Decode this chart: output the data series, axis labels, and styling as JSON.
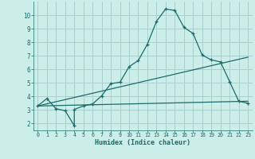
{
  "xlabel": "Humidex (Indice chaleur)",
  "bg_color": "#cceee8",
  "grid_color": "#aacfcf",
  "line_color": "#1a6b6b",
  "xlim": [
    -0.5,
    23.5
  ],
  "ylim": [
    1.5,
    11.0
  ],
  "xticks": [
    0,
    1,
    2,
    3,
    4,
    5,
    6,
    7,
    8,
    9,
    10,
    11,
    12,
    13,
    14,
    15,
    16,
    17,
    18,
    19,
    20,
    21,
    22,
    23
  ],
  "yticks": [
    2,
    3,
    4,
    5,
    6,
    7,
    8,
    9,
    10
  ],
  "series1_x": [
    0,
    1,
    2,
    3,
    4,
    4,
    5,
    6,
    7,
    8,
    9,
    10,
    11,
    12,
    13,
    14,
    15,
    16,
    17,
    18,
    19,
    20,
    21,
    22,
    23
  ],
  "series1_y": [
    3.3,
    3.85,
    3.1,
    2.95,
    1.85,
    3.05,
    3.3,
    3.45,
    4.05,
    4.95,
    5.05,
    6.2,
    6.65,
    7.85,
    9.55,
    10.45,
    10.35,
    9.1,
    8.65,
    7.05,
    6.7,
    6.55,
    5.1,
    3.65,
    3.5
  ],
  "series2_x": [
    0,
    23
  ],
  "series2_y": [
    3.3,
    6.9
  ],
  "series3_x": [
    0,
    23
  ],
  "series3_y": [
    3.3,
    3.65
  ]
}
